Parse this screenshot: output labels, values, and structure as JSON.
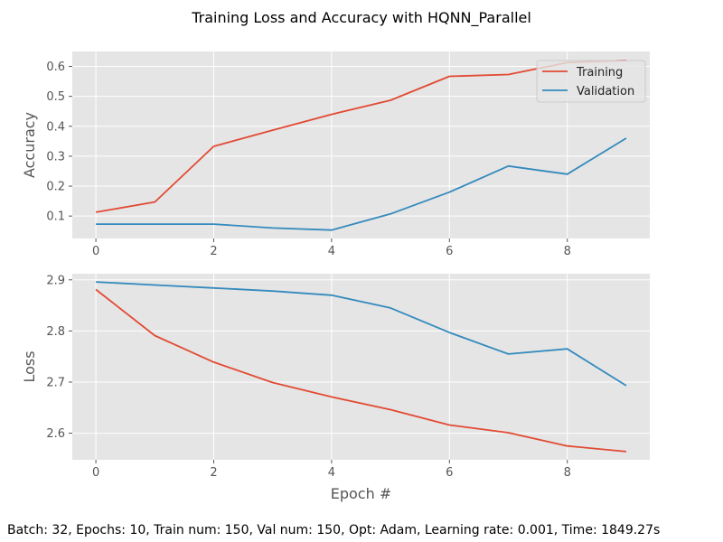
{
  "title": "Training Loss and Accuracy with HQNN_Parallel",
  "caption": "Batch: 32, Epochs: 10, Train num: 150, Val num: 150, Opt: Adam, Learning rate: 0.001, Time: 1849.27s",
  "colors": {
    "training": "#E24A33",
    "validation": "#348ABD",
    "panel_bg": "#E5E5E5",
    "grid": "#FFFFFF",
    "tick_text": "#555555"
  },
  "chart_data": [
    {
      "type": "line",
      "ylabel": "Accuracy",
      "xlabel": "",
      "x": [
        0,
        1,
        2,
        3,
        4,
        5,
        6,
        7,
        8,
        9
      ],
      "xlim": [
        -0.4,
        9.4
      ],
      "ylim": [
        0.025,
        0.65
      ],
      "xticks": [
        0,
        2,
        4,
        6,
        8
      ],
      "yticks": [
        0.1,
        0.2,
        0.3,
        0.4,
        0.5,
        0.6
      ],
      "ytick_labels": [
        "0.1",
        "0.2",
        "0.3",
        "0.4",
        "0.5",
        "0.6"
      ],
      "grid": true,
      "legend": "top-right",
      "series": [
        {
          "name": "Training",
          "values": [
            0.113,
            0.147,
            0.333,
            0.387,
            0.44,
            0.487,
            0.567,
            0.573,
            0.613,
            0.62
          ]
        },
        {
          "name": "Validation",
          "values": [
            0.073,
            0.073,
            0.073,
            0.06,
            0.053,
            0.107,
            0.18,
            0.267,
            0.24,
            0.36
          ]
        }
      ]
    },
    {
      "type": "line",
      "ylabel": "Loss",
      "xlabel": "Epoch #",
      "x": [
        0,
        1,
        2,
        3,
        4,
        5,
        6,
        7,
        8,
        9
      ],
      "xlim": [
        -0.4,
        9.4
      ],
      "ylim": [
        2.548,
        2.912
      ],
      "xticks": [
        0,
        2,
        4,
        6,
        8
      ],
      "yticks": [
        2.6,
        2.7,
        2.8,
        2.9
      ],
      "ytick_labels": [
        "2.6",
        "2.7",
        "2.8",
        "2.9"
      ],
      "grid": true,
      "series": [
        {
          "name": "Training",
          "values": [
            2.881,
            2.791,
            2.739,
            2.699,
            2.671,
            2.646,
            2.616,
            2.601,
            2.575,
            2.564
          ]
        },
        {
          "name": "Validation",
          "values": [
            2.896,
            2.89,
            2.884,
            2.878,
            2.87,
            2.845,
            2.797,
            2.755,
            2.765,
            2.693
          ]
        }
      ]
    }
  ]
}
